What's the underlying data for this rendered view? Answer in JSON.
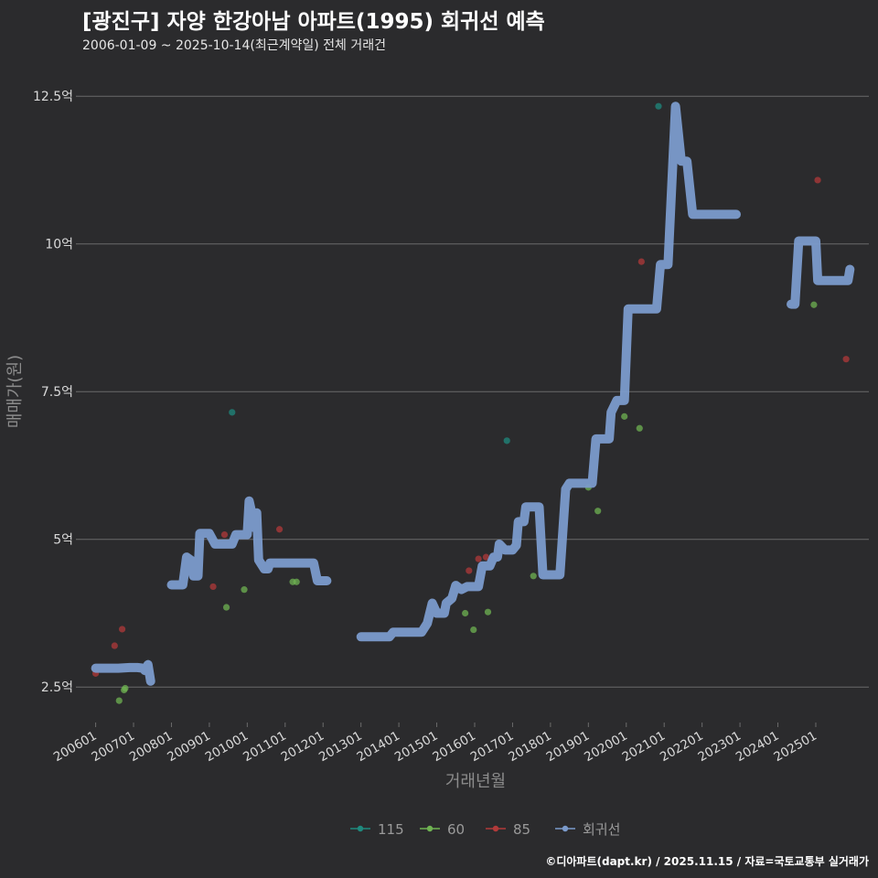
{
  "header": {
    "title": "[광진구] 자양 한강아남 아파트(1995) 회귀선 예측",
    "subtitle": "2006-01-09 ~ 2025-10-14(최근계약일) 전체 거래건"
  },
  "caption": "©디아파트(dapt.kr) / 2025.11.15 / 자료=국토교통부 실거래가",
  "colors": {
    "background": "#2b2b2d",
    "grid": "#6b6b6b",
    "text": "#d9d9d9",
    "axis_title": "#8c8c8c",
    "series_115": "#1f8a7e",
    "series_60": "#6fb352",
    "series_85": "#b23a3a",
    "regression": "#7b9bcc"
  },
  "chart_data": {
    "type": "scatter",
    "xlabel": "거래년월",
    "ylabel": "매매가(원)",
    "xlim": [
      2005.6,
      2026.4
    ],
    "ylim": [
      1.9,
      13.2
    ],
    "x_ticks": [
      {
        "value": 2006,
        "label": "200601"
      },
      {
        "value": 2007,
        "label": "200701"
      },
      {
        "value": 2008,
        "label": "200801"
      },
      {
        "value": 2009,
        "label": "200901"
      },
      {
        "value": 2010,
        "label": "201001"
      },
      {
        "value": 2011,
        "label": "201101"
      },
      {
        "value": 2012,
        "label": "201201"
      },
      {
        "value": 2013,
        "label": "201301"
      },
      {
        "value": 2014,
        "label": "201401"
      },
      {
        "value": 2015,
        "label": "201501"
      },
      {
        "value": 2016,
        "label": "201601"
      },
      {
        "value": 2017,
        "label": "201701"
      },
      {
        "value": 2018,
        "label": "201801"
      },
      {
        "value": 2019,
        "label": "201901"
      },
      {
        "value": 2020,
        "label": "202001"
      },
      {
        "value": 2021,
        "label": "202101"
      },
      {
        "value": 2022,
        "label": "202201"
      },
      {
        "value": 2023,
        "label": "202301"
      },
      {
        "value": 2024,
        "label": "202401"
      },
      {
        "value": 2025,
        "label": "202501"
      }
    ],
    "y_ticks": [
      {
        "value": 2.5,
        "label": "2.5억"
      },
      {
        "value": 5,
        "label": "5억"
      },
      {
        "value": 7.5,
        "label": "7.5억"
      },
      {
        "value": 10,
        "label": "10억"
      },
      {
        "value": 12.5,
        "label": "12.5억"
      }
    ],
    "legend": {
      "position": "bottom",
      "items": [
        {
          "key": "115",
          "label": "115"
        },
        {
          "key": "60",
          "label": "60"
        },
        {
          "key": "85",
          "label": "85"
        },
        {
          "key": "regression",
          "label": "회귀선"
        }
      ]
    },
    "series": [
      {
        "name": "115",
        "key": "115",
        "points": [
          [
            2009.6,
            7.15
          ],
          [
            2016.85,
            6.67
          ],
          [
            2020.85,
            12.33
          ]
        ]
      },
      {
        "name": "60",
        "key": "60",
        "points": [
          [
            2006.62,
            2.27
          ],
          [
            2006.75,
            2.45
          ],
          [
            2006.78,
            2.48
          ],
          [
            2009.45,
            3.85
          ],
          [
            2009.92,
            4.15
          ],
          [
            2011.2,
            4.28
          ],
          [
            2011.3,
            4.28
          ],
          [
            2015.75,
            3.75
          ],
          [
            2015.97,
            3.47
          ],
          [
            2016.35,
            3.77
          ],
          [
            2017.55,
            4.38
          ],
          [
            2019.0,
            5.88
          ],
          [
            2019.25,
            5.48
          ],
          [
            2019.95,
            7.08
          ],
          [
            2020.35,
            6.88
          ],
          [
            2024.95,
            8.97
          ]
        ]
      },
      {
        "name": "85",
        "key": "85",
        "points": [
          [
            2006.5,
            3.2
          ],
          [
            2006.7,
            3.48
          ],
          [
            2006.0,
            2.73
          ],
          [
            2009.1,
            4.2
          ],
          [
            2009.4,
            5.08
          ],
          [
            2010.85,
            5.17
          ],
          [
            2015.85,
            4.47
          ],
          [
            2016.1,
            4.67
          ],
          [
            2016.3,
            4.7
          ],
          [
            2020.4,
            9.7
          ],
          [
            2025.05,
            11.08
          ],
          [
            2025.8,
            8.05
          ]
        ]
      }
    ],
    "regression_segments": [
      [
        [
          2006.0,
          2.82
        ],
        [
          2006.3,
          2.82
        ],
        [
          2006.6,
          2.82
        ],
        [
          2006.9,
          2.83
        ],
        [
          2007.1,
          2.83
        ],
        [
          2007.25,
          2.82
        ],
        [
          2007.3,
          2.78
        ],
        [
          2007.38,
          2.88
        ],
        [
          2007.45,
          2.6
        ]
      ],
      [
        [
          2008.0,
          4.23
        ],
        [
          2008.3,
          4.23
        ],
        [
          2008.4,
          4.7
        ],
        [
          2008.55,
          4.63
        ],
        [
          2008.58,
          4.38
        ],
        [
          2008.7,
          4.38
        ],
        [
          2008.75,
          5.1
        ],
        [
          2009.0,
          5.1
        ],
        [
          2009.15,
          4.92
        ],
        [
          2009.6,
          4.92
        ],
        [
          2009.7,
          5.08
        ],
        [
          2010.0,
          5.08
        ],
        [
          2010.05,
          5.65
        ],
        [
          2010.12,
          5.45
        ],
        [
          2010.18,
          5.2
        ],
        [
          2010.25,
          5.45
        ],
        [
          2010.3,
          4.65
        ],
        [
          2010.45,
          4.5
        ],
        [
          2010.55,
          4.5
        ],
        [
          2010.6,
          4.6
        ],
        [
          2011.75,
          4.6
        ],
        [
          2011.85,
          4.3
        ],
        [
          2012.1,
          4.3
        ]
      ],
      [
        [
          2013.0,
          3.35
        ],
        [
          2013.75,
          3.35
        ],
        [
          2013.85,
          3.43
        ],
        [
          2014.6,
          3.43
        ],
        [
          2014.75,
          3.58
        ],
        [
          2014.88,
          3.92
        ],
        [
          2015.0,
          3.75
        ],
        [
          2015.2,
          3.75
        ],
        [
          2015.25,
          3.92
        ],
        [
          2015.4,
          4.0
        ],
        [
          2015.5,
          4.22
        ],
        [
          2015.65,
          4.15
        ],
        [
          2015.8,
          4.2
        ],
        [
          2016.1,
          4.2
        ],
        [
          2016.2,
          4.55
        ],
        [
          2016.4,
          4.55
        ],
        [
          2016.5,
          4.7
        ],
        [
          2016.6,
          4.7
        ],
        [
          2016.65,
          4.92
        ],
        [
          2016.8,
          4.82
        ],
        [
          2017.0,
          4.82
        ],
        [
          2017.1,
          4.9
        ],
        [
          2017.15,
          5.3
        ],
        [
          2017.3,
          5.3
        ],
        [
          2017.35,
          5.55
        ],
        [
          2017.7,
          5.55
        ],
        [
          2017.8,
          4.4
        ],
        [
          2018.25,
          4.4
        ],
        [
          2018.4,
          5.85
        ],
        [
          2018.5,
          5.95
        ],
        [
          2019.1,
          5.95
        ],
        [
          2019.2,
          6.7
        ],
        [
          2019.55,
          6.7
        ],
        [
          2019.6,
          7.15
        ],
        [
          2019.75,
          7.35
        ],
        [
          2019.95,
          7.35
        ],
        [
          2020.05,
          8.9
        ],
        [
          2020.8,
          8.9
        ],
        [
          2020.9,
          9.65
        ],
        [
          2021.1,
          9.65
        ],
        [
          2021.3,
          12.33
        ],
        [
          2021.45,
          11.4
        ],
        [
          2021.6,
          11.4
        ],
        [
          2021.75,
          10.5
        ],
        [
          2022.9,
          10.5
        ]
      ],
      [
        [
          2024.35,
          8.98
        ],
        [
          2024.45,
          8.98
        ],
        [
          2024.55,
          10.05
        ],
        [
          2025.0,
          10.05
        ],
        [
          2025.05,
          9.38
        ],
        [
          2025.85,
          9.38
        ],
        [
          2025.9,
          9.57
        ]
      ]
    ]
  }
}
